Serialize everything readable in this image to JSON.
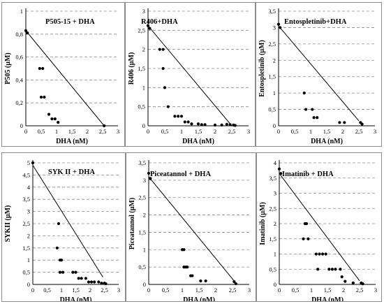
{
  "chart_data": [
    {
      "type": "scatter",
      "title": "P505-15 + DHA",
      "xlabel": "DHA (nM)",
      "ylabel": "P505",
      "ylabel_unit": "(µM)",
      "xlim": [
        0,
        3
      ],
      "ylim": [
        0,
        1
      ],
      "xticks": [
        "0",
        "0,5",
        "1",
        "1,5",
        "2",
        "2,5",
        "3"
      ],
      "yticks": [
        "0",
        "0,2",
        "0,4",
        "0,6",
        "0,8",
        "1"
      ],
      "ytick_values": [
        0,
        0.2,
        0.4,
        0.6,
        0.8,
        1
      ],
      "isobole": [
        [
          0,
          0.83
        ],
        [
          2.55,
          0
        ]
      ],
      "points": [
        [
          0,
          0.83
        ],
        [
          0.05,
          0.81
        ],
        [
          0.45,
          0.5
        ],
        [
          0.55,
          0.5
        ],
        [
          0.5,
          0.25
        ],
        [
          0.6,
          0.25
        ],
        [
          0.75,
          0.1
        ],
        [
          0.85,
          0.06
        ],
        [
          0.95,
          0.06
        ],
        [
          1.05,
          0.03
        ],
        [
          2.55,
          0
        ]
      ]
    },
    {
      "type": "scatter",
      "title": "R406+DHA",
      "xlabel": "DHA (nM)",
      "ylabel": "R406",
      "ylabel_unit": "(µM)",
      "xlim": [
        0,
        3
      ],
      "ylim": [
        0,
        3
      ],
      "xticks": [
        "0",
        "0,5",
        "1",
        "1,5",
        "2",
        "2,5",
        "3"
      ],
      "yticks": [
        "0",
        "0,5",
        "1",
        "1,5",
        "2",
        "2,5",
        "3"
      ],
      "ytick_values": [
        0,
        0.5,
        1,
        1.5,
        2,
        2.5,
        3
      ],
      "isobole": [
        [
          0,
          2.62
        ],
        [
          2.5,
          0
        ]
      ],
      "points": [
        [
          0,
          2.62
        ],
        [
          0.05,
          2.55
        ],
        [
          0.35,
          2
        ],
        [
          0.45,
          2
        ],
        [
          0.45,
          1.5
        ],
        [
          0.5,
          1
        ],
        [
          0.6,
          0.5
        ],
        [
          0.8,
          0.25
        ],
        [
          0.9,
          0.25
        ],
        [
          1.0,
          0.25
        ],
        [
          1.1,
          0.1
        ],
        [
          1.2,
          0.1
        ],
        [
          1.3,
          0.05
        ],
        [
          1.5,
          0.05
        ],
        [
          1.6,
          0.03
        ],
        [
          1.7,
          0.03
        ],
        [
          2.0,
          0.02
        ],
        [
          2.2,
          0.02
        ],
        [
          2.35,
          0.04
        ],
        [
          2.45,
          0.03
        ],
        [
          2.55,
          0.02
        ],
        [
          2.6,
          0.01
        ]
      ]
    },
    {
      "type": "scatter",
      "title": "Entospletinib+DHA",
      "xlabel": "DHA (nM)",
      "ylabel": "Entospletinib",
      "ylabel_unit": "(µM)",
      "xlim": [
        0,
        3
      ],
      "ylim": [
        0,
        3.5
      ],
      "xticks": [
        "0",
        "0,5",
        "1",
        "1,5",
        "2",
        "2,5",
        "3"
      ],
      "yticks": [
        "0",
        "0,5",
        "1",
        "1,5",
        "2",
        "2,5",
        "3",
        "3,5"
      ],
      "ytick_values": [
        0,
        0.5,
        1,
        1.5,
        2,
        2.5,
        3,
        3.5
      ],
      "isobole": [
        [
          0,
          3.05
        ],
        [
          2.5,
          0.15
        ]
      ],
      "points": [
        [
          0,
          3.1
        ],
        [
          0.05,
          3.0
        ],
        [
          0.8,
          1
        ],
        [
          0.85,
          0.5
        ],
        [
          1.05,
          0.5
        ],
        [
          1.1,
          0.25
        ],
        [
          1.2,
          0.25
        ],
        [
          1.9,
          0.1
        ],
        [
          2.05,
          0.1
        ],
        [
          2.55,
          0.1
        ],
        [
          2.6,
          0.05
        ]
      ]
    },
    {
      "type": "scatter",
      "title": "SYK II + DHA",
      "xlabel": "DHA (nM)",
      "ylabel": "SYKII",
      "ylabel_unit": "(µM)",
      "xlim": [
        0,
        3
      ],
      "ylim": [
        0,
        5
      ],
      "xticks": [
        "0",
        "0,5",
        "1",
        "1,5",
        "2",
        "2,5",
        "3"
      ],
      "yticks": [
        "0",
        "0,5",
        "1",
        "1,5",
        "2",
        "2,5",
        "3",
        "3,5",
        "4",
        "4,5",
        "5"
      ],
      "ytick_values": [
        0,
        0.5,
        1,
        1.5,
        2,
        2.5,
        3,
        3.5,
        4,
        4.5,
        5
      ],
      "isobole": [
        [
          0,
          4.9
        ],
        [
          2.45,
          0.3
        ]
      ],
      "points": [
        [
          0,
          5.0
        ],
        [
          0.9,
          2.5
        ],
        [
          0.85,
          1.5
        ],
        [
          0.95,
          1.0
        ],
        [
          1.0,
          1.0
        ],
        [
          0.95,
          0.5
        ],
        [
          1.05,
          0.5
        ],
        [
          1.4,
          0.5
        ],
        [
          1.5,
          0.5
        ],
        [
          1.6,
          0.25
        ],
        [
          1.7,
          0.25
        ],
        [
          1.85,
          0.25
        ],
        [
          1.95,
          0.1
        ],
        [
          2.05,
          0.1
        ],
        [
          2.15,
          0.1
        ],
        [
          2.3,
          0.1
        ],
        [
          2.4,
          0.05
        ],
        [
          2.5,
          0.05
        ],
        [
          2.55,
          0.03
        ]
      ]
    },
    {
      "type": "scatter",
      "title": "Piceatannol + DHA",
      "xlabel": "DHA (nM)",
      "ylabel": "Piceatannol",
      "ylabel_unit": "(µM)",
      "xlim": [
        0,
        3
      ],
      "ylim": [
        0,
        3.5
      ],
      "xticks": [
        "0",
        "0,5",
        "1",
        "1,5",
        "2",
        "2,5",
        "3"
      ],
      "yticks": [
        "0",
        "0,5",
        "1",
        "1,5",
        "2",
        "2,5",
        "3",
        "3,5"
      ],
      "ytick_values": [
        0,
        0.5,
        1,
        1.5,
        2,
        2.5,
        3,
        3.5
      ],
      "isobole": [
        [
          0,
          3.1
        ],
        [
          2.55,
          0.1
        ]
      ],
      "points": [
        [
          0,
          3.2
        ],
        [
          0.05,
          3.05
        ],
        [
          1.0,
          1.0
        ],
        [
          1.05,
          1.0
        ],
        [
          1.05,
          0.5
        ],
        [
          1.1,
          0.5
        ],
        [
          1.15,
          0.5
        ],
        [
          1.25,
          0.25
        ],
        [
          1.3,
          0.25
        ],
        [
          1.55,
          0.1
        ],
        [
          1.7,
          0.1
        ],
        [
          2.55,
          0.08
        ],
        [
          2.6,
          0.02
        ]
      ]
    },
    {
      "type": "scatter",
      "title": "Imatinib + DHA",
      "xlabel": "DHA (nM)",
      "ylabel": "Imatinib",
      "ylabel_unit": "(µM)",
      "xlim": [
        0,
        3
      ],
      "ylim": [
        0,
        4
      ],
      "xticks": [
        "0",
        "0,5",
        "1",
        "1,5",
        "2",
        "2,5",
        "3"
      ],
      "yticks": [
        "0",
        "0,5",
        "1",
        "1,5",
        "2",
        "2,5",
        "3",
        "3,5",
        "4"
      ],
      "ytick_values": [
        0,
        0.5,
        1,
        1.5,
        2,
        2.5,
        3,
        3.5,
        4
      ],
      "isobole": [
        [
          0,
          3.65
        ],
        [
          2.5,
          0.12
        ]
      ],
      "points": [
        [
          0,
          3.8
        ],
        [
          0.05,
          3.65
        ],
        [
          0.8,
          2.0
        ],
        [
          0.85,
          2.0
        ],
        [
          0.75,
          1.5
        ],
        [
          0.9,
          1.5
        ],
        [
          1.15,
          1.0
        ],
        [
          1.25,
          1.0
        ],
        [
          1.35,
          1.0
        ],
        [
          1.45,
          1.0
        ],
        [
          1.2,
          0.5
        ],
        [
          1.55,
          0.5
        ],
        [
          1.65,
          0.5
        ],
        [
          1.75,
          0.5
        ],
        [
          1.9,
          0.5
        ],
        [
          1.95,
          0.25
        ],
        [
          2.05,
          0.1
        ],
        [
          2.3,
          0.05
        ],
        [
          2.55,
          0.05
        ],
        [
          2.6,
          0.02
        ]
      ]
    }
  ]
}
